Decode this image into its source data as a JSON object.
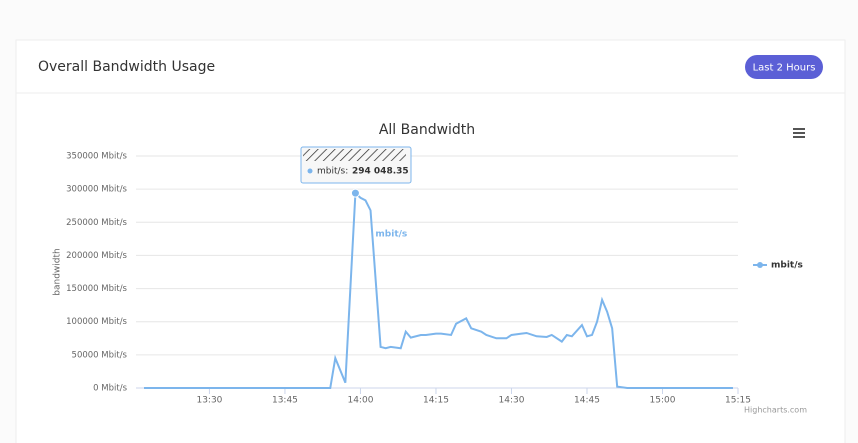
{
  "header": {
    "title": "Overall Bandwidth Usage",
    "button": "Last 2 Hours"
  },
  "chart_data": {
    "type": "line",
    "title": "All Bandwidth",
    "y_label": "bandwidth",
    "x": [
      "13:17",
      "13:54",
      "13:55",
      "13:57",
      "13:59",
      "14:00",
      "14:01",
      "14:02",
      "14:04",
      "14:05",
      "14:06",
      "14:08",
      "14:09",
      "14:10",
      "14:12",
      "14:13",
      "14:15",
      "14:16",
      "14:18",
      "14:19",
      "14:21",
      "14:22",
      "14:24",
      "14:25",
      "14:27",
      "14:29",
      "14:30",
      "14:32",
      "14:33",
      "14:35",
      "14:37",
      "14:38",
      "14:40",
      "14:41",
      "14:42",
      "14:44",
      "14:45",
      "14:46",
      "14:47",
      "14:48",
      "14:49",
      "14:50",
      "14:51",
      "14:53",
      "15:14"
    ],
    "series": [
      {
        "name": "mbit/s",
        "color": "#7cb5ec",
        "values": [
          0,
          0,
          45000,
          8000,
          294048.35,
          287000,
          283000,
          268000,
          62000,
          60000,
          62000,
          60000,
          85000,
          76000,
          80000,
          80000,
          82000,
          82000,
          80000,
          97000,
          105000,
          90000,
          85000,
          80000,
          75000,
          75000,
          80000,
          82000,
          83000,
          78000,
          77000,
          80000,
          70000,
          80000,
          78000,
          95000,
          78000,
          80000,
          100000,
          133000,
          115000,
          90000,
          2000,
          0,
          0
        ]
      }
    ],
    "xlim": [
      "13:17",
      "15:15"
    ],
    "xticks": [
      "13:30",
      "13:45",
      "14:00",
      "14:15",
      "14:30",
      "14:45",
      "15:00",
      "15:15"
    ],
    "ylim": [
      0,
      350000
    ],
    "yticks": [
      {
        "value": 0,
        "label": "0 Mbit/s"
      },
      {
        "value": 50000,
        "label": "50000 Mbit/s"
      },
      {
        "value": 100000,
        "label": "100000 Mbit/s"
      },
      {
        "value": 150000,
        "label": "150000 Mbit/s"
      },
      {
        "value": 200000,
        "label": "200000 Mbit/s"
      },
      {
        "value": 250000,
        "label": "250000 Mbit/s"
      },
      {
        "value": 300000,
        "label": "300000 Mbit/s"
      },
      {
        "value": 350000,
        "label": "350000 Mbit/s"
      }
    ],
    "grid": true,
    "legend": "right",
    "tooltip": {
      "label": "mbit/s:",
      "value": "294 048.35"
    },
    "credit": "Highcharts.com"
  }
}
